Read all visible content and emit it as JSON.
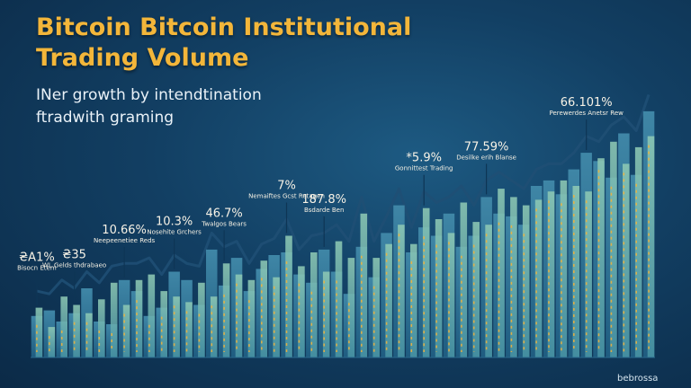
{
  "title": "Bitcoin Bitcoin Institutional Trading Volume",
  "subtitle": "INer growth by intendtination ftradwith graming",
  "watermark": "bebrossa",
  "colors": {
    "bg_center": "#1d5a82",
    "bg_edge": "#0b2a47",
    "title": "#f3b63a",
    "marker": "#f2b23a",
    "trend": "#1f4f74",
    "bar_dark": "#3f86a6",
    "bar_light": "#8ec9b4"
  },
  "chart_data": {
    "type": "bar",
    "xlabel": "",
    "ylabel": "",
    "ylim": [
      0,
      100
    ],
    "grid": false,
    "legend": "none",
    "x": [
      1,
      2,
      3,
      4,
      5,
      6,
      7,
      8,
      9,
      10,
      11,
      12,
      13,
      14,
      15,
      16,
      17,
      18,
      19,
      20,
      21,
      22,
      23,
      24,
      25,
      26,
      27,
      28,
      29,
      30,
      31,
      32,
      33,
      34,
      35,
      36,
      37,
      38,
      39,
      40,
      41,
      42,
      43,
      44,
      45,
      46,
      47,
      48,
      49,
      50
    ],
    "series": [
      {
        "values": [
          15,
          17,
          13,
          16,
          25,
          13,
          12,
          28,
          24,
          15,
          18,
          31,
          28,
          19,
          39,
          26,
          36,
          24,
          32,
          37,
          38,
          30,
          27,
          39,
          31,
          23,
          40,
          29,
          45,
          55,
          38,
          47,
          44,
          52,
          40,
          44,
          58,
          52,
          51,
          48,
          62,
          64,
          59,
          68,
          74,
          71,
          65,
          81,
          66,
          89
        ]
      },
      {
        "values": [
          18,
          11,
          22,
          19,
          16,
          21,
          27,
          19,
          28,
          30,
          24,
          22,
          20,
          27,
          22,
          34,
          30,
          28,
          35,
          29,
          44,
          33,
          38,
          31,
          42,
          36,
          52,
          36,
          41,
          48,
          41,
          54,
          50,
          45,
          56,
          49,
          48,
          61,
          58,
          55,
          57,
          60,
          64,
          62,
          60,
          72,
          78,
          70,
          76,
          80
        ]
      }
    ],
    "annotations": [
      {
        "x": 1,
        "value": "₴A1%",
        "label": "Bisocn Etem"
      },
      {
        "x": 4,
        "value": "₴35",
        "label": "WL Gelds thdrabaeo"
      },
      {
        "x": 8,
        "value": "10.66%",
        "label": "Neepeenetiee Reds"
      },
      {
        "x": 12,
        "value": "10.3%",
        "label": "Nosehite Grchers"
      },
      {
        "x": 16,
        "value": "46.7%",
        "label": "Twalgos Bears"
      },
      {
        "x": 21,
        "value": "7%",
        "label": "Nemaiftes Gcst Retagen"
      },
      {
        "x": 24,
        "value": "187.8%",
        "label": "Bsdarde Ben"
      },
      {
        "x": 32,
        "value": "*5.9%",
        "label": "Gonnittest Trading"
      },
      {
        "x": 37,
        "value": "77.59%",
        "label": "Desilke erih Blanse"
      },
      {
        "x": 45,
        "value": "66.101%",
        "label": "Perewerdes Anetsr Rew"
      }
    ]
  }
}
